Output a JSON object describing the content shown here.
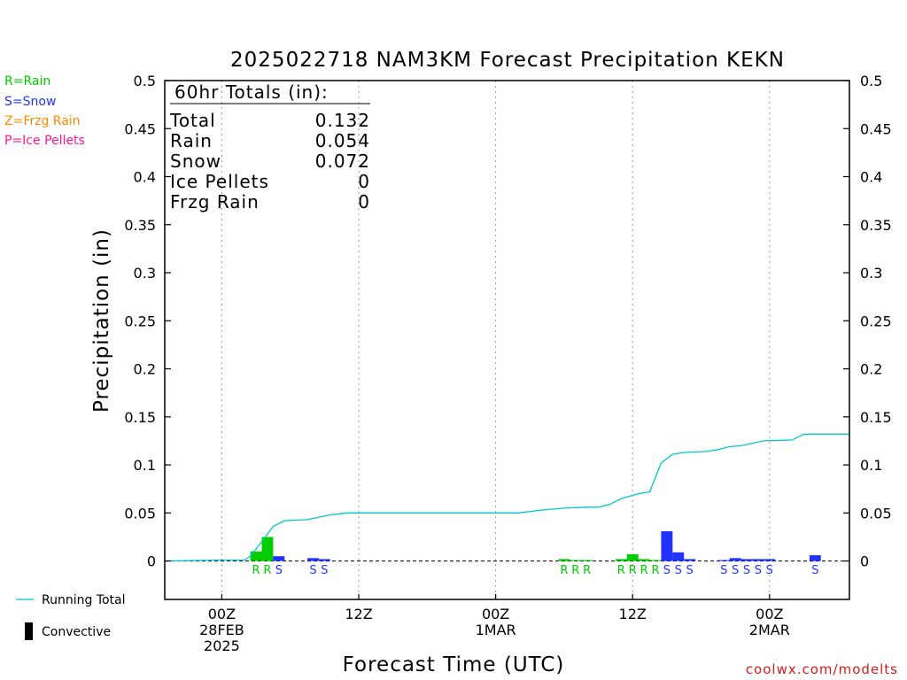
{
  "chart_data": {
    "type": "bar",
    "title": "2025022718 NAM3KM Forecast Precipitation KEKN",
    "xlabel": "Forecast Time (UTC)",
    "ylabel": "Precipitation (in)",
    "ylim": [
      -0.04,
      0.5
    ],
    "yticks": [
      "0",
      "0.05",
      "0.1",
      "0.15",
      "0.2",
      "0.25",
      "0.3",
      "0.35",
      "0.4",
      "0.45",
      "0.5"
    ],
    "xlim_hours": [
      -5,
      55
    ],
    "xticks": [
      {
        "hour": 0,
        "lines": [
          "00Z",
          "28FEB",
          "2025"
        ]
      },
      {
        "hour": 12,
        "lines": [
          "12Z"
        ]
      },
      {
        "hour": 24,
        "lines": [
          "00Z",
          "1MAR"
        ]
      },
      {
        "hour": 36,
        "lines": [
          "12Z"
        ]
      },
      {
        "hour": 48,
        "lines": [
          "00Z",
          "2MAR"
        ]
      }
    ],
    "colors": {
      "R": "#00cc00",
      "S": "#2233ff",
      "Z": "#ff8800",
      "P": "#ff1493",
      "running": "#00c8c8"
    },
    "bars": [
      {
        "hour": 3,
        "type": "R",
        "value": 0.01
      },
      {
        "hour": 4,
        "type": "R",
        "value": 0.025
      },
      {
        "hour": 5,
        "type": "S",
        "value": 0.005
      },
      {
        "hour": 8,
        "type": "S",
        "value": 0.003
      },
      {
        "hour": 9,
        "type": "S",
        "value": 0.002
      },
      {
        "hour": 30,
        "type": "R",
        "value": 0.002
      },
      {
        "hour": 31,
        "type": "R",
        "value": 0.001
      },
      {
        "hour": 32,
        "type": "R",
        "value": 0.001
      },
      {
        "hour": 35,
        "type": "R",
        "value": 0.002
      },
      {
        "hour": 36,
        "type": "R",
        "value": 0.007
      },
      {
        "hour": 37,
        "type": "R",
        "value": 0.002
      },
      {
        "hour": 38,
        "type": "R",
        "value": 0.001
      },
      {
        "hour": 39,
        "type": "S",
        "value": 0.031
      },
      {
        "hour": 40,
        "type": "S",
        "value": 0.009
      },
      {
        "hour": 41,
        "type": "S",
        "value": 0.002
      },
      {
        "hour": 44,
        "type": "S",
        "value": 0.001
      },
      {
        "hour": 45,
        "type": "S",
        "value": 0.003
      },
      {
        "hour": 46,
        "type": "S",
        "value": 0.002
      },
      {
        "hour": 47,
        "type": "S",
        "value": 0.002
      },
      {
        "hour": 48,
        "type": "S",
        "value": 0.002
      },
      {
        "hour": 52,
        "type": "S",
        "value": 0.006
      }
    ],
    "running_total": {
      "name": "Running Total",
      "x": [
        -5,
        0,
        2,
        2.5,
        3.5,
        4.5,
        5.5,
        7.5,
        9.5,
        11,
        13,
        26,
        28,
        30,
        32,
        33,
        34,
        35,
        36.5,
        37.5,
        38.5,
        39.5,
        40.5,
        42.5,
        43.5,
        44.5,
        45.5,
        47.5,
        50,
        51,
        55
      ],
      "values": [
        0,
        0.001,
        0.001,
        0.005,
        0.02,
        0.036,
        0.042,
        0.043,
        0.048,
        0.05,
        0.05,
        0.05,
        0.053,
        0.055,
        0.056,
        0.056,
        0.059,
        0.065,
        0.07,
        0.072,
        0.102,
        0.111,
        0.113,
        0.114,
        0.116,
        0.119,
        0.12,
        0.125,
        0.126,
        0.132,
        0.132
      ]
    },
    "totals_box": {
      "header": "60hr Totals (in):",
      "rows": [
        {
          "label": "Total",
          "value": "0.132"
        },
        {
          "label": "Rain",
          "value": "0.054"
        },
        {
          "label": "Snow",
          "value": "0.072"
        },
        {
          "label": "Ice Pellets",
          "value": "0"
        },
        {
          "label": "Frzg Rain",
          "value": "0"
        }
      ]
    },
    "type_legend": [
      {
        "text": "R=Rain",
        "color": "#00cc00"
      },
      {
        "text": "S=Snow",
        "color": "#2233ff"
      },
      {
        "text": "Z=Frzg Rain",
        "color": "#ff8800"
      },
      {
        "text": "P=Ice Pellets",
        "color": "#ff1493"
      }
    ],
    "bottom_legend": {
      "running": "Running Total",
      "convective": "Convective"
    },
    "credit": "coolwx.com/modelts"
  }
}
